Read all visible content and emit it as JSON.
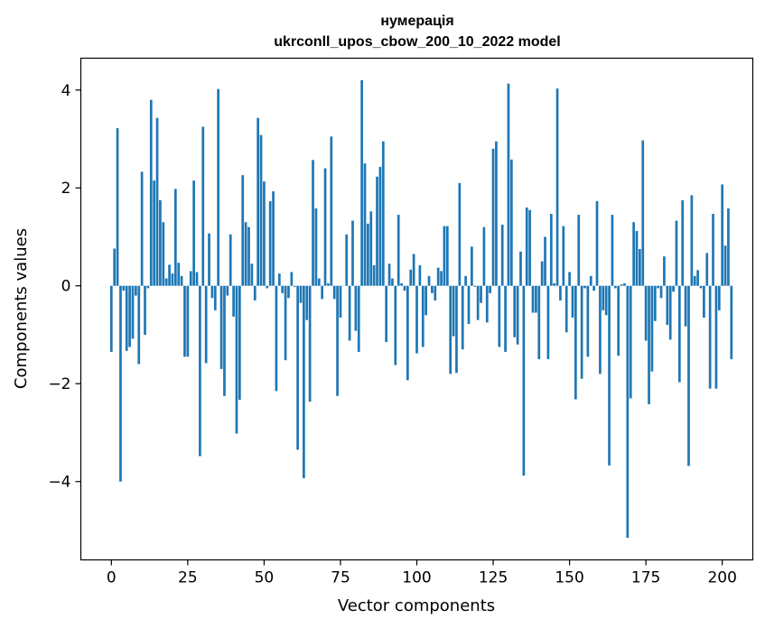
{
  "chart_data": {
    "type": "bar",
    "title": [
      "нумерація",
      "ukrconll_upos_cbow_200_10_2022 model"
    ],
    "xlabel": "Vector components",
    "ylabel": "Components values",
    "xlim": [
      -10,
      210
    ],
    "ylim": [
      -5.6,
      4.65
    ],
    "xticks": [
      0,
      25,
      50,
      75,
      100,
      125,
      150,
      175,
      200
    ],
    "yticks": [
      -4,
      -2,
      0,
      2,
      4
    ],
    "xtick_labels": [
      "0",
      "25",
      "50",
      "75",
      "100",
      "125",
      "150",
      "175",
      "200"
    ],
    "ytick_labels": [
      "−4",
      "−2",
      "0",
      "2",
      "4"
    ],
    "bar_color": "#1f77b4",
    "x_start": 0,
    "values": [
      -1.35,
      0.76,
      3.22,
      -4.0,
      -0.1,
      -1.33,
      -1.25,
      -1.08,
      -0.2,
      -1.6,
      2.33,
      -1.0,
      -0.05,
      3.8,
      2.15,
      3.43,
      1.75,
      1.3,
      0.15,
      0.43,
      0.25,
      1.98,
      0.47,
      0.2,
      -1.45,
      -1.45,
      0.3,
      2.15,
      0.28,
      -3.48,
      3.25,
      -1.58,
      1.07,
      -0.25,
      -0.5,
      4.02,
      -1.7,
      -2.25,
      -0.2,
      1.05,
      -0.63,
      -3.02,
      -2.33,
      2.26,
      1.3,
      1.2,
      0.45,
      -0.3,
      3.43,
      3.08,
      2.13,
      -0.05,
      1.73,
      1.93,
      -2.15,
      0.25,
      -0.15,
      -1.52,
      -0.25,
      0.28,
      -0.02,
      -3.35,
      -0.35,
      -3.93,
      -0.7,
      -2.37,
      2.57,
      1.58,
      0.15,
      -0.27,
      2.4,
      0.05,
      3.05,
      -0.27,
      -2.25,
      -0.65,
      0.0,
      1.05,
      -1.12,
      1.33,
      -0.92,
      -1.35,
      4.2,
      2.5,
      1.27,
      1.52,
      0.42,
      2.23,
      2.43,
      2.95,
      -1.15,
      0.45,
      0.15,
      -1.62,
      1.45,
      0.05,
      -0.1,
      -1.93,
      0.33,
      0.65,
      -1.38,
      0.42,
      -1.25,
      -0.6,
      0.2,
      -0.15,
      -0.3,
      0.37,
      0.3,
      1.22,
      1.22,
      -1.8,
      -1.03,
      -1.78,
      2.1,
      -1.3,
      0.2,
      -0.78,
      0.8,
      -0.02,
      -0.7,
      -0.35,
      1.2,
      -0.75,
      -0.15,
      2.8,
      2.95,
      -1.25,
      1.25,
      -1.35,
      4.13,
      2.58,
      -1.05,
      -1.2,
      0.7,
      -3.88,
      1.6,
      1.55,
      -0.55,
      -0.55,
      -1.5,
      0.5,
      1.0,
      -1.5,
      1.47,
      0.05,
      4.03,
      -0.3,
      1.22,
      -0.95,
      0.28,
      -0.65,
      -2.32,
      1.45,
      -1.9,
      -0.05,
      -1.45,
      0.2,
      -0.1,
      1.73,
      -1.8,
      -0.5,
      -0.6,
      -3.67,
      1.45,
      -0.05,
      -1.43,
      0.03,
      0.05,
      -5.15,
      -2.3,
      1.3,
      1.12,
      0.75,
      2.97,
      -1.12,
      -2.42,
      -1.75,
      -0.72,
      -0.05,
      -0.25,
      0.6,
      -0.8,
      -1.1,
      -0.12,
      1.33,
      -1.97,
      1.75,
      -0.83,
      -3.68,
      1.85,
      0.2,
      0.32,
      -0.05,
      -0.65,
      0.67,
      -2.1,
      1.47,
      -2.1,
      -0.5,
      2.07,
      0.82,
      1.58,
      -1.5
    ]
  }
}
